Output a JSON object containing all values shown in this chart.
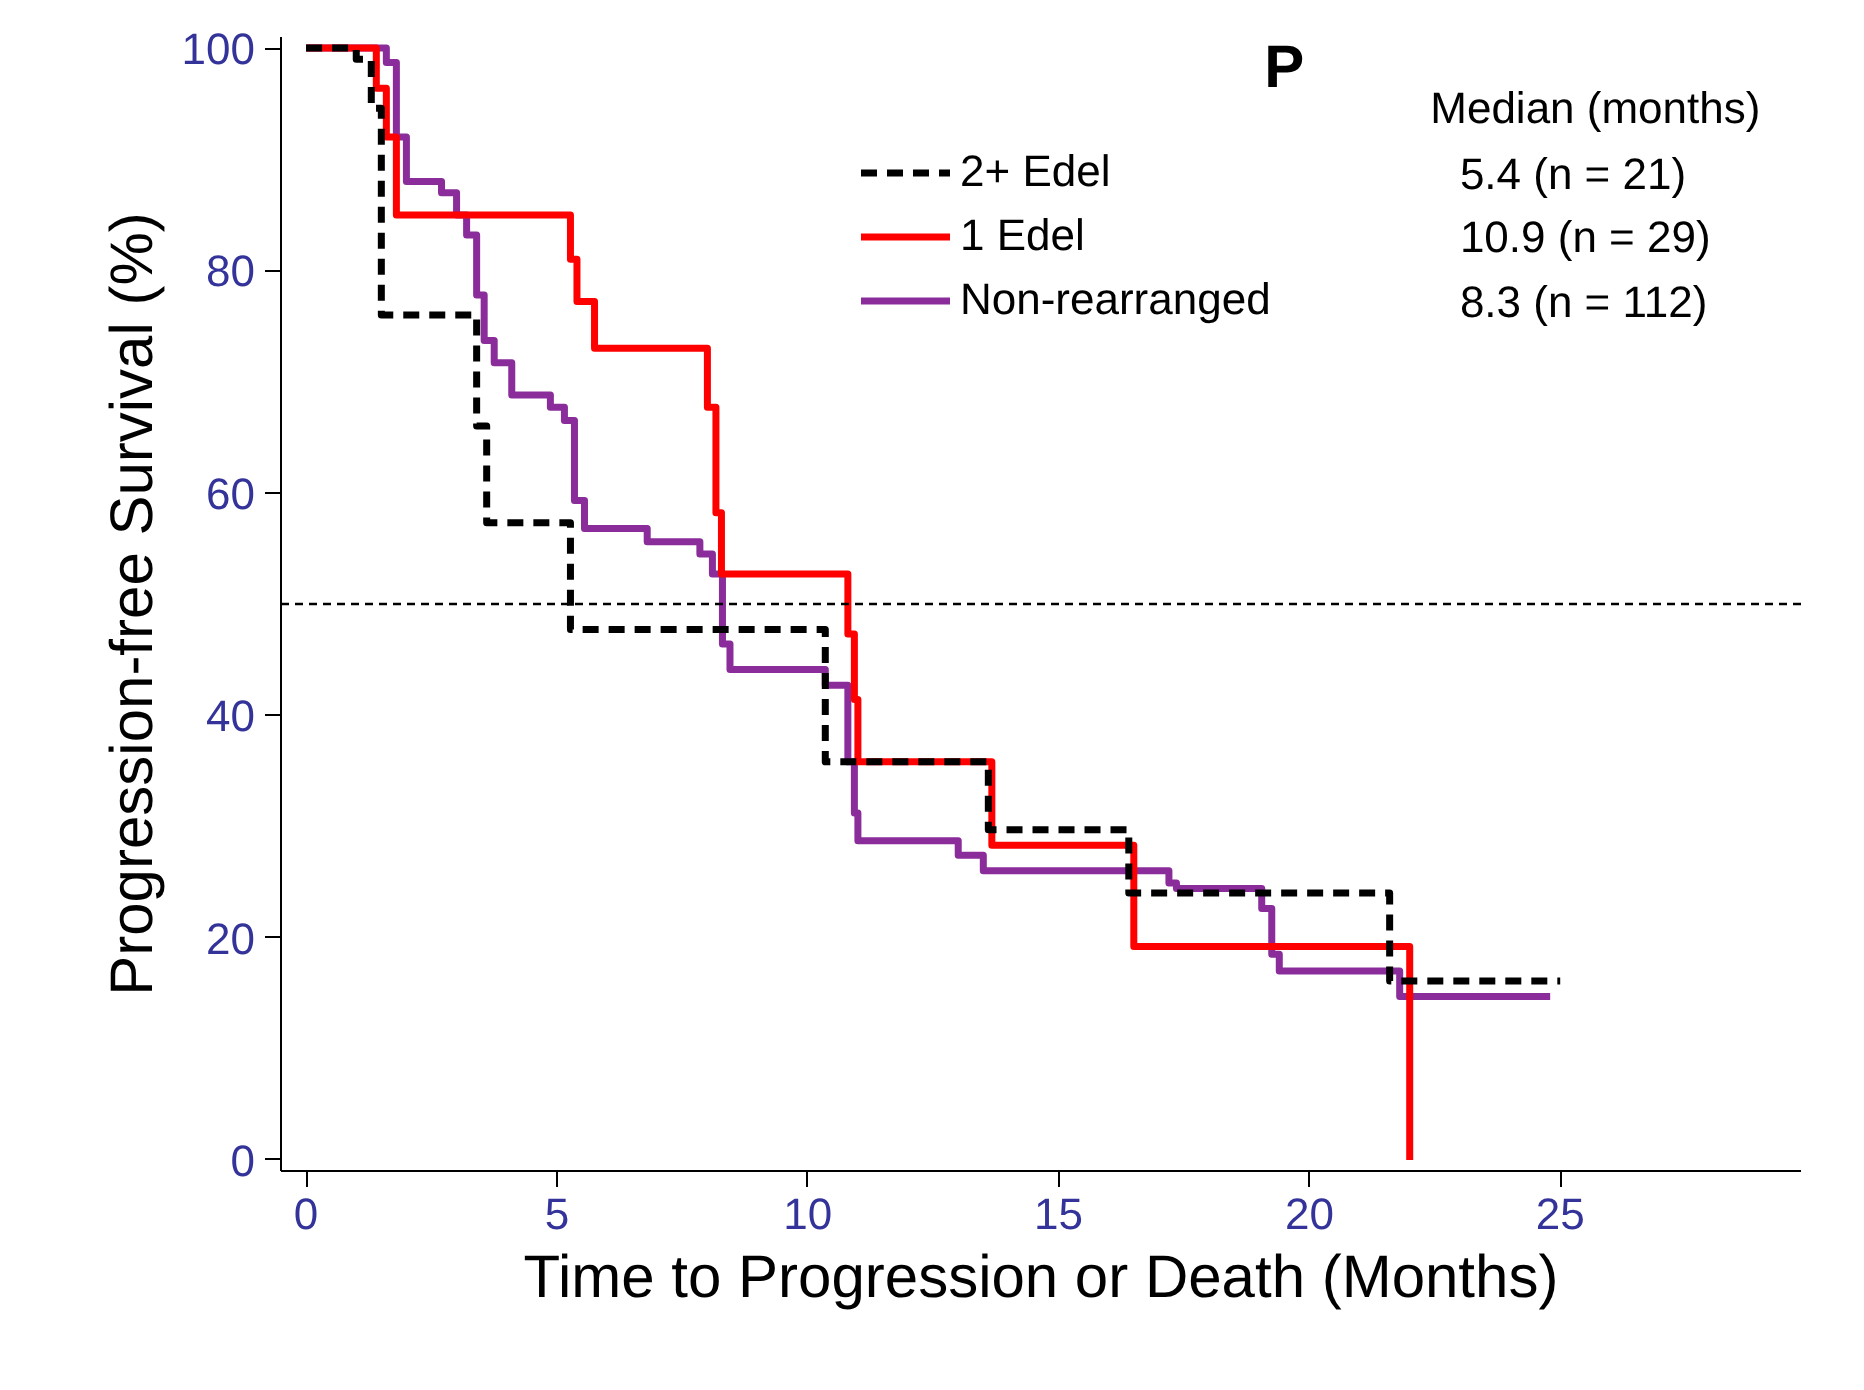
{
  "chart_data": {
    "type": "step",
    "xlabel": "Time to Progression or Death (Months)",
    "ylabel": "Progression-free Survival (%)",
    "series": [
      {
        "name": "2+ Edel",
        "color": "#000000",
        "line_style": "dashed",
        "x": [
          0,
          1.0,
          1.3,
          1.5,
          3.4,
          3.6,
          5.27,
          10.35,
          13.6,
          16.4,
          21.6,
          25.0
        ],
        "values": [
          100,
          99,
          94.6,
          76,
          66,
          57.3,
          47.7,
          35.8,
          29.7,
          24.0,
          16.1,
          16.1
        ]
      },
      {
        "name": "1 Edel",
        "color": "#ff0000",
        "line_style": "solid",
        "x": [
          0,
          1.4,
          1.6,
          1.8,
          5.27,
          5.4,
          5.75,
          8.0,
          8.17,
          8.28,
          10.8,
          10.93,
          11.0,
          13.67,
          16.5,
          22.0
        ],
        "values": [
          100,
          96.4,
          92,
          85,
          81,
          77.2,
          73,
          67.7,
          58.2,
          52.7,
          47.3,
          41.4,
          35.8,
          28.3,
          19.2,
          0
        ]
      },
      {
        "name": "Non-rearranged",
        "color": "#8b2c9b",
        "line_style": "solid",
        "x": [
          0,
          1.6,
          1.8,
          2.0,
          2.7,
          3.0,
          3.2,
          3.4,
          3.55,
          3.75,
          4.1,
          4.87,
          5.15,
          5.35,
          5.55,
          6.8,
          7.85,
          8.1,
          8.3,
          8.45,
          10.35,
          10.8,
          10.93,
          11.0,
          13.0,
          13.5,
          17.2,
          17.35,
          19.05,
          19.25,
          19.4,
          21.8,
          24.8
        ],
        "values": [
          100,
          98.7,
          92,
          88,
          87,
          85,
          83.2,
          77.8,
          73.7,
          71.7,
          68.8,
          67.7,
          66.5,
          59.3,
          56.8,
          55.6,
          54.5,
          52.7,
          46.4,
          44.1,
          42.7,
          35.8,
          31.2,
          28.7,
          27.4,
          26.0,
          24.9,
          24.4,
          22.6,
          18.5,
          17.0,
          14.7,
          14.7
        ]
      }
    ],
    "xlim": [
      -0.5,
      29.8
    ],
    "ylim": [
      -1,
      101
    ],
    "xticks": [
      0,
      5,
      10,
      15,
      20,
      25
    ],
    "yticks": [
      0,
      20,
      40,
      60,
      80,
      100
    ],
    "ref_lines": [
      {
        "axis": "y",
        "value": 50,
        "color": "#000000",
        "line_style": "dashed"
      }
    ],
    "annotations": [
      "P",
      "Median (months)",
      "5.4 (n = 21)",
      "10.9 (n = 29)",
      "8.3 (n = 112)"
    ],
    "legend": "top right",
    "grid": false
  }
}
